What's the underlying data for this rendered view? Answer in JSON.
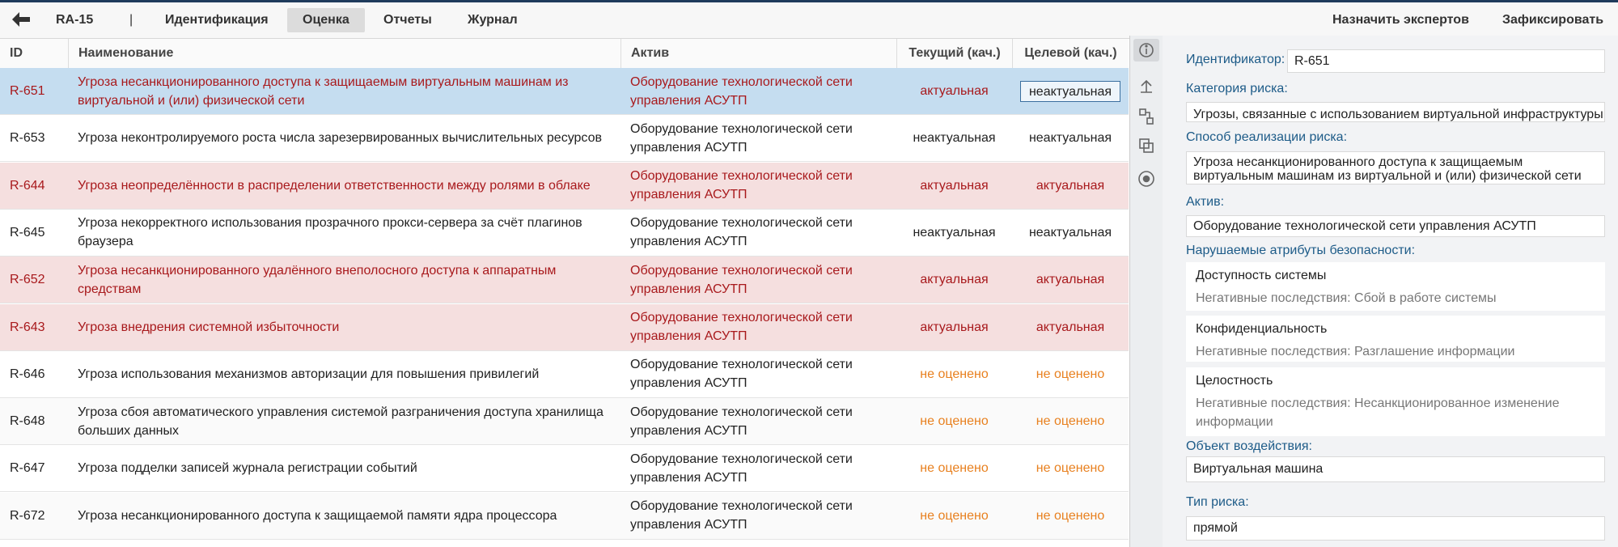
{
  "toolbar": {
    "id": "RA-15",
    "separator": "|",
    "tabs": [
      "Идентификация",
      "Оценка",
      "Отчеты",
      "Журнал"
    ],
    "active_tab": 1,
    "actions": [
      "Назначить экспертов",
      "Зафиксировать"
    ]
  },
  "table": {
    "columns": [
      "ID",
      "Наименование",
      "Актив",
      "Текущий (кач.)",
      "Целевой (кач.)"
    ],
    "selected_row": 0,
    "rows": [
      {
        "cells": [
          "R-651",
          "Угроза несанкционированного доступа к защищаемым виртуальным машинам из виртуальной и (или) физической сети",
          "Оборудование технологической сети управления АСУТП",
          "актуальная",
          "неактуальная"
        ],
        "color": "#a8191c",
        "rating_color": "#a8191c",
        "background": "#c5ddf0"
      },
      {
        "cells": [
          "R-653",
          "Угроза неконтролируемого роста числа зарезервированных вычислительных ресурсов",
          "Оборудование технологической сети управления АСУТП",
          "неактуальная",
          "неактуальная"
        ],
        "color": "#222222",
        "rating_color": "#222222",
        "background": "#ffffff"
      },
      {
        "cells": [
          "R-644",
          "Угроза неопределённости в распределении ответственности между ролями в облаке",
          "Оборудование технологической сети управления АСУТП",
          "актуальная",
          "актуальная"
        ],
        "color": "#a8191c",
        "rating_color": "#a8191c",
        "background": "#f5dfdf"
      },
      {
        "cells": [
          "R-645",
          "Угроза некорректного использования прозрачного прокси-сервера за счёт плагинов браузера",
          "Оборудование технологической сети управления АСУТП",
          "неактуальная",
          "неактуальная"
        ],
        "color": "#222222",
        "rating_color": "#222222",
        "background": "#ffffff"
      },
      {
        "cells": [
          "R-652",
          "Угроза несанкционированного удалённого внеполосного доступа к аппаратным средствам",
          "Оборудование технологической сети управления АСУТП",
          "актуальная",
          "актуальная"
        ],
        "color": "#a8191c",
        "rating_color": "#a8191c",
        "background": "#f5dfdf"
      },
      {
        "cells": [
          "R-643",
          "Угроза внедрения системной избыточности",
          "Оборудование технологической сети управления АСУТП",
          "актуальная",
          "актуальная"
        ],
        "color": "#a8191c",
        "rating_color": "#a8191c",
        "background": "#f5dfdf"
      },
      {
        "cells": [
          "R-646",
          "Угроза использования механизмов авторизации для повышения привилегий",
          "Оборудование технологической сети управления АСУТП",
          "не оценено",
          "не оценено"
        ],
        "color": "#222222",
        "rating_color": "#e8801f",
        "background": "#ffffff"
      },
      {
        "cells": [
          "R-648",
          "Угроза сбоя автоматического управления системой разграничения доступа хранилища больших данных",
          "Оборудование технологической сети управления АСУТП",
          "не оценено",
          "не оценено"
        ],
        "color": "#222222",
        "rating_color": "#e8801f",
        "background": "#fafafa"
      },
      {
        "cells": [
          "R-647",
          "Угроза подделки записей журнала регистрации событий",
          "Оборудование технологической сети управления АСУТП",
          "не оценено",
          "не оценено"
        ],
        "color": "#222222",
        "rating_color": "#e8801f",
        "background": "#ffffff"
      },
      {
        "cells": [
          "R-672",
          "Угроза несанкционированного доступа к защищаемой памяти ядра процессора",
          "Оборудование технологической сети управления АСУТП",
          "не оценено",
          "не оценено"
        ],
        "color": "#222222",
        "rating_color": "#e8801f",
        "background": "#fafafa"
      }
    ]
  },
  "details": {
    "identifier": {
      "label": "Идентификатор:",
      "value": "R-651"
    },
    "category": {
      "label": "Категория риска:",
      "value": "Угрозы, связанные с использованием виртуальной инфраструктуры"
    },
    "method": {
      "label": "Способ реализации риска:",
      "value": "Угроза несанкционированного доступа к защищаемым виртуальным машинам из виртуальной и (или) физической сети"
    },
    "asset": {
      "label": "Актив:",
      "value": "Оборудование технологической сети управления АСУТП"
    },
    "attributes": {
      "label": "Нарушаемые атрибуты безопасности:",
      "items": [
        {
          "name": "Доступность системы",
          "consequence": "Негативные последствия: Сбой в работе системы"
        },
        {
          "name": "Конфиденциальность",
          "consequence": "Негативные последствия: Разглашение информации"
        },
        {
          "name": "Целостность",
          "consequence": "Негативные последствия: Несанкционированное изменение информации"
        }
      ]
    },
    "object": {
      "label": "Объект воздействия:",
      "value": "Виртуальная машина"
    },
    "risk_type": {
      "label": "Тип риска:",
      "value": "прямой"
    }
  }
}
